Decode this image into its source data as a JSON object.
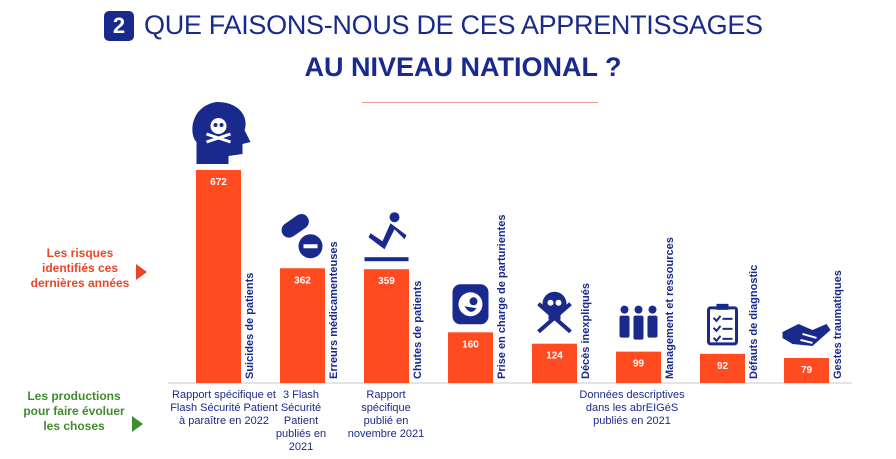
{
  "header": {
    "badge": "2",
    "title_line1": "QUE FAISONS-NOUS DE CES APPRENTISSAGES",
    "title_line2": "AU NIVEAU NATIONAL ?"
  },
  "labels": {
    "risks": "Les risques identifiés ces dernières années",
    "productions": "Les productions pour faire évoluer les choses"
  },
  "colors": {
    "bar": "#ff4b1f",
    "navy": "#1a2a8c",
    "accent_red": "#e8462a",
    "accent_green": "#3f8c2f"
  },
  "chart_data": {
    "type": "bar",
    "categories": [
      "Suicides de patients",
      "Erreurs médicamenteuses",
      "Chutes de patients",
      "Prise en charge de parturientes",
      "Décès inexpliqués",
      "Management et ressources",
      "Défauts de diagnostic",
      "Gestes traumatiques"
    ],
    "values": [
      672,
      362,
      359,
      160,
      124,
      99,
      92,
      79
    ],
    "value_labels": [
      "672",
      "362",
      "359",
      "160",
      "124",
      "99",
      "92",
      "79"
    ],
    "icons": [
      "head-skull-icon",
      "pills-icon",
      "falling-person-icon",
      "pregnancy-icon",
      "skull-crossbones-icon",
      "people-group-icon",
      "clipboard-checklist-icon",
      "handshake-icon"
    ],
    "ylim": [
      0,
      672
    ]
  },
  "productions": [
    "Rapport spécifique et Flash Sécurité Patient à paraître en 2022",
    "3 Flash Sécurité Patient publiés en 2021",
    "Rapport spécifique publié en novembre 2021",
    "Données descriptives dans les abrEIGéS publiés en 2021"
  ]
}
